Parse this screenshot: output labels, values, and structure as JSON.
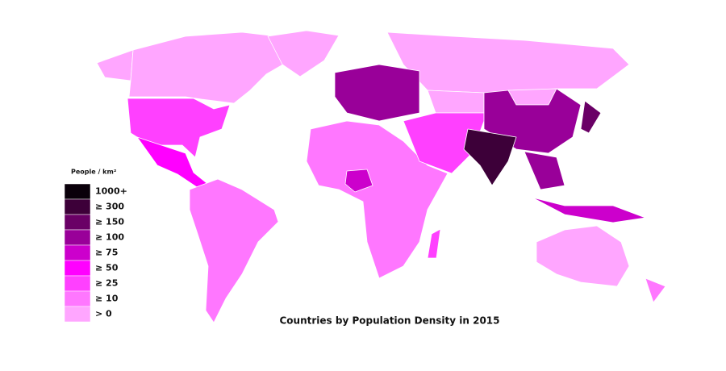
{
  "map": {
    "title": "Countries by Population Density in 2015",
    "legend": {
      "title": "People / km²",
      "items": [
        {
          "label": "1000+",
          "color": "#0a000a"
        },
        {
          "label": "≥ 300",
          "color": "#3d0039"
        },
        {
          "label": "≥ 150",
          "color": "#6a0066"
        },
        {
          "label": "≥ 100",
          "color": "#990099"
        },
        {
          "label": "≥ 75",
          "color": "#cc00cc"
        },
        {
          "label": "≥ 50",
          "color": "#ff00ff"
        },
        {
          "label": "≥ 25",
          "color": "#ff40ff"
        },
        {
          "label": "≥ 10",
          "color": "#ff77ff"
        },
        {
          "label": "> 0",
          "color": "#ffa6ff"
        }
      ]
    }
  }
}
